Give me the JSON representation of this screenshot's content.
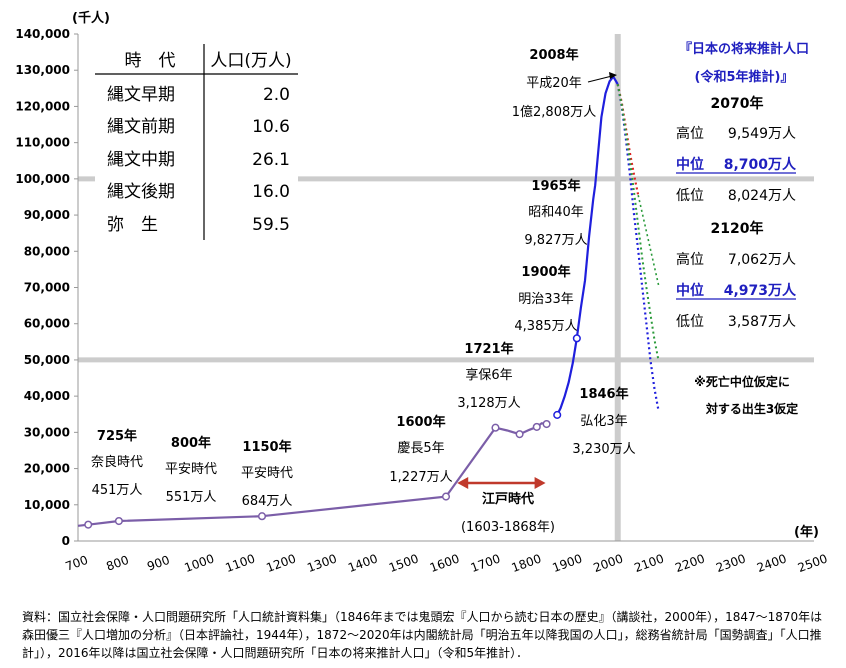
{
  "chart_data": {
    "type": "line",
    "unit_label": "(千人)",
    "x_unit_label": "(年)",
    "xlim": [
      700,
      2500
    ],
    "ylim": [
      0,
      140000
    ],
    "x_ticks": [
      "700",
      "800",
      "900",
      "1000",
      "1100",
      "1200",
      "1300",
      "1400",
      "1500",
      "1600",
      "1700",
      "1800",
      "1900",
      "2000",
      "2100",
      "2200",
      "2300",
      "2400",
      "2500"
    ],
    "y_ticks": [
      "0",
      "10,000",
      "20,000",
      "30,000",
      "40,000",
      "50,000",
      "60,000",
      "70,000",
      "80,000",
      "90,000",
      "100,000",
      "110,000",
      "120,000",
      "130,000",
      "140,000"
    ],
    "reference_lines": {
      "x": 2020,
      "y": [
        100000,
        50000
      ]
    },
    "series": [
      {
        "kind": "historical",
        "x": [
          700,
          725,
          800,
          1150,
          1600,
          1721,
          1750,
          1780,
          1790,
          1804,
          1822,
          1834,
          1846
        ],
        "y": [
          4200,
          4510,
          5510,
          6840,
          12270,
          31280,
          30500,
          29500,
          30000,
          30700,
          31500,
          32500,
          32300
        ],
        "markers": [
          725,
          800,
          1150,
          1600,
          1721,
          1780,
          1822,
          1846
        ]
      },
      {
        "kind": "modern",
        "x": [
          1872,
          1880,
          1890,
          1900,
          1910,
          1920,
          1930,
          1940,
          1950,
          1960,
          1965,
          1970,
          1980,
          1990,
          2000,
          2008,
          2010,
          2015,
          2020
        ],
        "y": [
          34810,
          36650,
          39900,
          43850,
          49180,
          55960,
          64450,
          71930,
          84120,
          94300,
          98270,
          104670,
          117060,
          123610,
          126930,
          128080,
          128060,
          127100,
          126150
        ],
        "markers": [
          1872,
          1920
        ]
      },
      {
        "kind": "projection-low",
        "x": [
          2020,
          2030,
          2040,
          2050,
          2060,
          2070,
          2080,
          2090,
          2100,
          2110,
          2120
        ],
        "y": [
          126150,
          120000,
          111000,
          101000,
          90000,
          80240,
          70000,
          60000,
          50000,
          42000,
          35870
        ]
      },
      {
        "kind": "projection-high",
        "x": [
          2020,
          2030,
          2040,
          2050,
          2060,
          2070
        ],
        "y": [
          126150,
          121000,
          114000,
          107000,
          101000,
          95490
        ]
      },
      {
        "kind": "projection-mid",
        "x": [
          2020,
          2030,
          2040,
          2050,
          2060,
          2070,
          2080,
          2090,
          2100,
          2110,
          2120
        ],
        "y": [
          126150,
          120300,
          112800,
          104700,
          96200,
          87000,
          78000,
          70000,
          62700,
          55500,
          49730
        ]
      },
      {
        "kind": "projection-high-ext",
        "x": [
          2070,
          2120
        ],
        "y": [
          95490,
          70620
        ]
      }
    ],
    "annotations": [
      {
        "lines": [
          "725年",
          "奈良時代",
          "451万人"
        ]
      },
      {
        "lines": [
          "800年",
          "平安時代",
          "551万人"
        ]
      },
      {
        "lines": [
          "1150年",
          "平安時代",
          "684万人"
        ]
      },
      {
        "lines": [
          "1600年",
          "慶長5年",
          "1,227万人"
        ]
      },
      {
        "lines": [
          "1721年",
          "享保6年",
          "3,128万人"
        ]
      },
      {
        "lines": [
          "1846年",
          "弘化3年",
          "3,230万人"
        ]
      },
      {
        "lines": [
          "1900年",
          "明治33年",
          "4,385万人"
        ]
      },
      {
        "lines": [
          "1965年",
          "昭和40年",
          "9,827万人"
        ]
      },
      {
        "lines": [
          "2008年",
          "平成20年",
          "1億2,808万人"
        ]
      }
    ],
    "edo_span": {
      "label": "江戸時代",
      "range_text": "(1603-1868年)",
      "x": [
        1603,
        1868
      ]
    },
    "projection_panel": {
      "title_line1": "『日本の将来推計人口",
      "title_line2": "(令和5年推計)』",
      "y2070": "2070年",
      "y2070_rows": [
        {
          "label": "高位",
          "value": "9,549万人"
        },
        {
          "label": "中位",
          "value": "8,700万人"
        },
        {
          "label": "低位",
          "value": "8,024万人"
        }
      ],
      "y2120": "2120年",
      "y2120_rows": [
        {
          "label": "高位",
          "value": "7,062万人"
        },
        {
          "label": "中位",
          "value": "4,973万人"
        },
        {
          "label": "低位",
          "value": "3,587万人"
        }
      ],
      "note_line1": "※死亡中位仮定に",
      "note_line2": "対する出生3仮定"
    },
    "jomon_table": {
      "header": [
        "時　代",
        "人口(万人)"
      ],
      "rows": [
        [
          "縄文早期",
          "2.0"
        ],
        [
          "縄文前期",
          "10.6"
        ],
        [
          "縄文中期",
          "26.1"
        ],
        [
          "縄文後期",
          "16.0"
        ],
        [
          "弥　生",
          "59.5"
        ]
      ]
    }
  },
  "colors": {
    "historical": "#7b5ea8",
    "modern": "#1f1fdd",
    "projection_low": "#1f1fdd",
    "projection_mid": "#2a9a3a",
    "projection_high": "#dd2222",
    "edo_arrow": "#c0392b",
    "ref_line": "#cccccc"
  },
  "source_note": "資料：国立社会保障・人口問題研究所「人口統計資料集」（1846年までは鬼頭宏『人口から読む日本の歴史』（講談社，2000年），1847〜1870年は森田優三『人口増加の分析』（日本評論社，1944年），1872〜2020年は内閣統計局「明治五年以降我国の人口」，総務省統計局「国勢調査」「人口推計」），2016年以降は国立社会保障・人口問題研究所「日本の将来推計人口」（令和5年推計）．"
}
